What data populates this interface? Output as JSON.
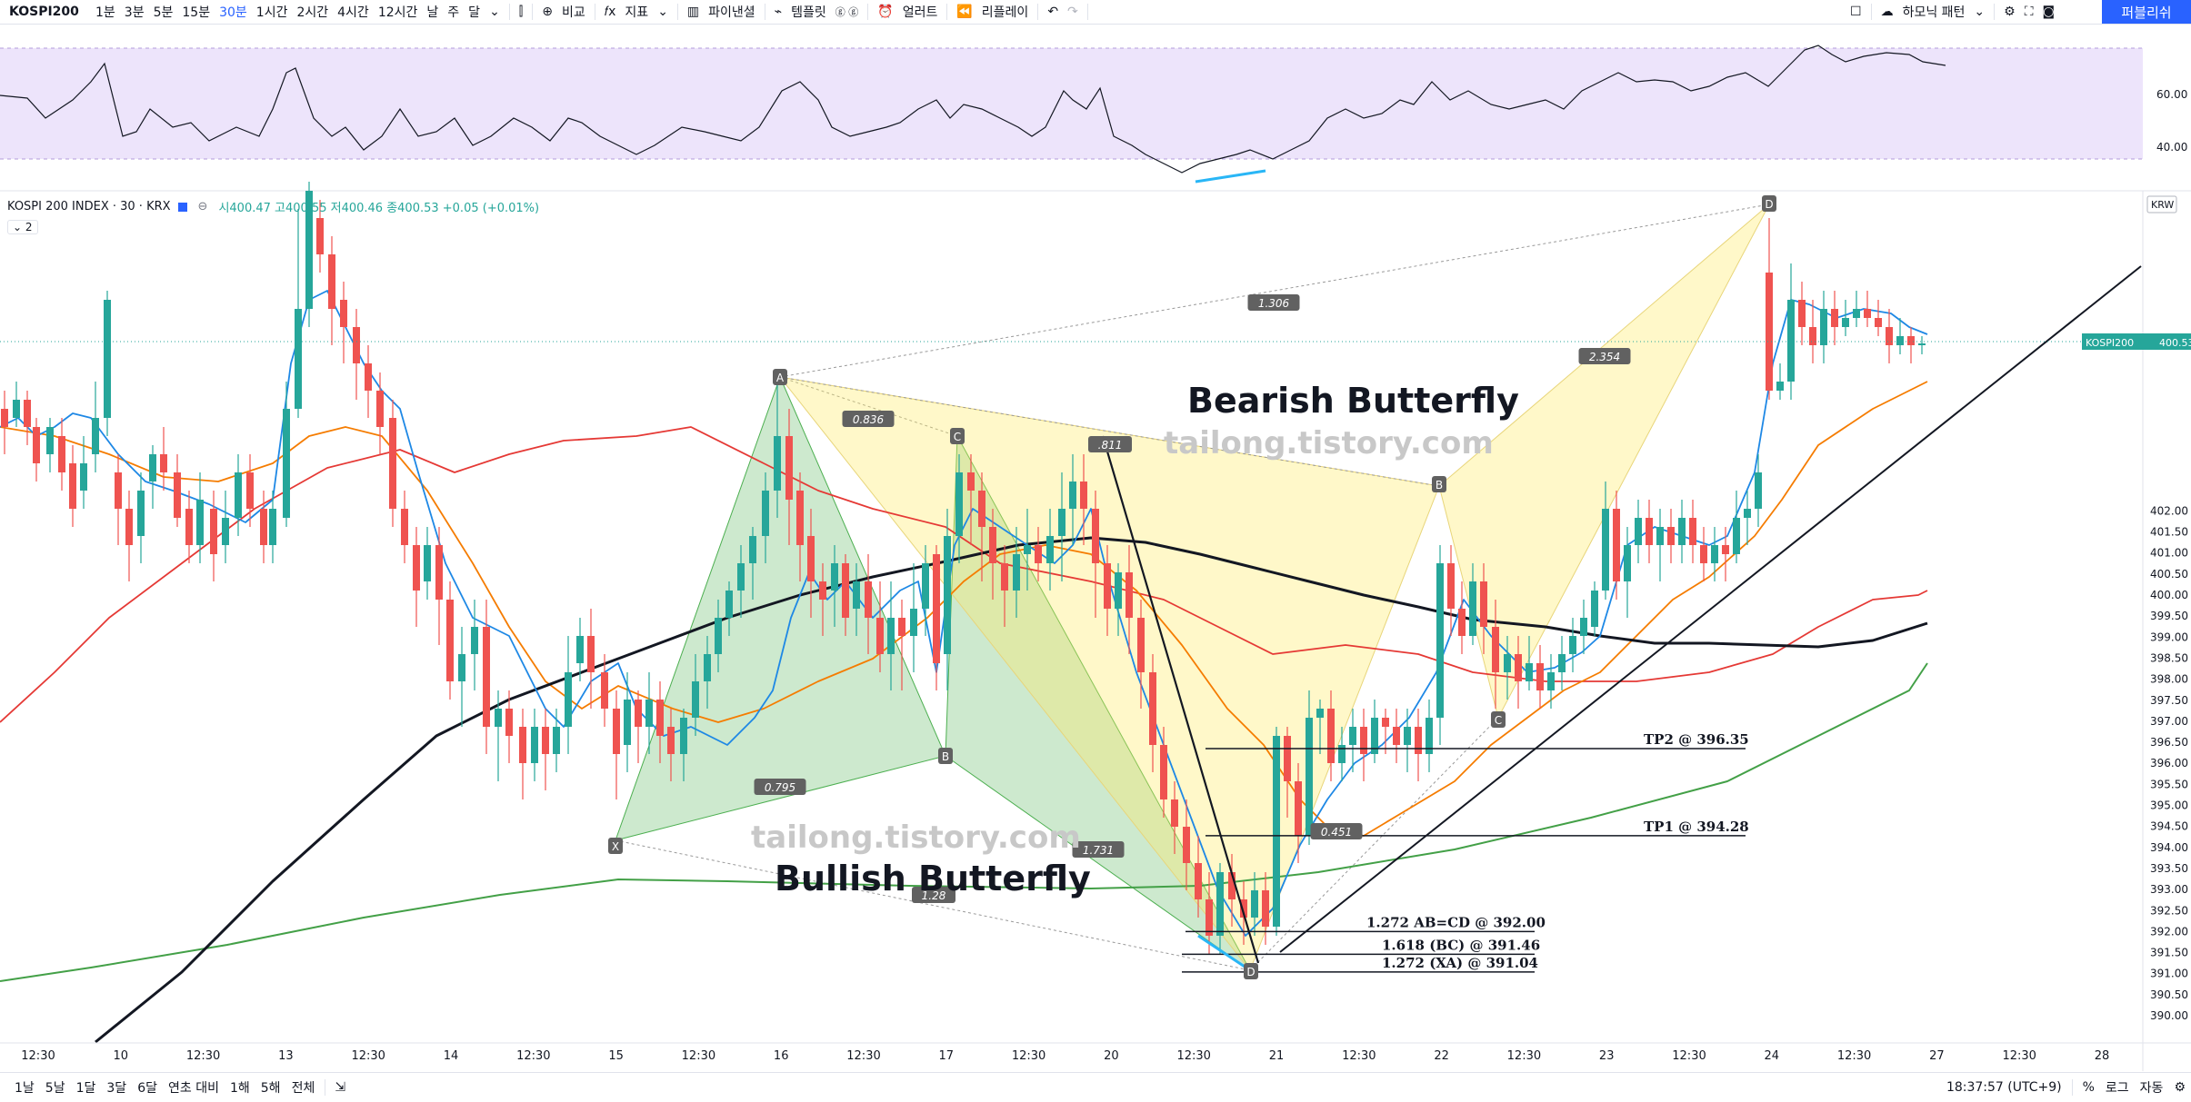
{
  "toolbar": {
    "symbol": "KOSPI200",
    "intervals": [
      "1분",
      "3분",
      "5분",
      "15분",
      "30분",
      "1시간",
      "2시간",
      "4시간",
      "12시간",
      "날",
      "주",
      "달"
    ],
    "active_interval": "30분",
    "compare": "비교",
    "indicators": "지표",
    "pine_editor": "파이낸셜",
    "templates": "템플릿",
    "alert": "얼러트",
    "replay": "리플레이",
    "harmonic": "하모닉 패턴",
    "publish": "퍼블리쉬"
  },
  "legend": {
    "name": "KOSPI 200 INDEX · 30 · KRX",
    "ohlc": "시400.47 고400.55 저400.46 종400.53 +0.05 (+0.01%)",
    "indicator_count": "2"
  },
  "chart": {
    "currency": "KRW",
    "price_tag_symbol": "KOSPI200",
    "price_tag_value": "400.53",
    "price_ticks": [
      "402.00",
      "401.50",
      "401.00",
      "400.50",
      "400.00",
      "399.50",
      "399.00",
      "398.50",
      "398.00",
      "397.50",
      "397.00",
      "396.50",
      "396.00",
      "395.50",
      "395.00",
      "394.50",
      "394.00",
      "393.50",
      "393.00",
      "392.50",
      "392.00",
      "391.50",
      "391.00",
      "390.50",
      "390.00"
    ],
    "rsi_ticks": [
      "60.00",
      "40.00"
    ],
    "time_ticks": [
      "12:30",
      "10",
      "12:30",
      "13",
      "12:30",
      "14",
      "12:30",
      "15",
      "12:30",
      "16",
      "12:30",
      "17",
      "12:30",
      "20",
      "12:30",
      "21",
      "12:30",
      "22",
      "12:30",
      "23",
      "12:30",
      "24",
      "12:30",
      "27",
      "12:30",
      "28"
    ],
    "watermark": "tailong.tistory.com",
    "bearish_title": "Bearish Butterfly",
    "bullish_title": "Bullish Butterfly",
    "points": {
      "X": "X",
      "A": "A",
      "B": "B",
      "C": "C",
      "D": "D"
    },
    "ratios": {
      "bull_ab": "0.836",
      "bull_bc": "0.795",
      "bull_xd": "1.28",
      "bull_cd": "1.731",
      "bear_ab": ".811",
      "bear_xd": "1.306",
      "bear_cd": "2.354",
      "bear_bc": "0.451"
    },
    "levels": {
      "tp2": "TP2 @ 396.35",
      "tp1": "TP1 @ 394.28",
      "abcd": "1.272 AB=CD @ 392.00",
      "bc": "1.618 (BC) @ 391.46",
      "xa": "1.272 (XA) @ 391.04"
    }
  },
  "bottombar": {
    "ranges": [
      "1날",
      "5날",
      "1달",
      "3달",
      "6달",
      "연초 대비",
      "1해",
      "5해",
      "전체"
    ],
    "time": "18:37:57 (UTC+9)",
    "percent": "%",
    "log": "로그",
    "auto": "자동"
  }
}
